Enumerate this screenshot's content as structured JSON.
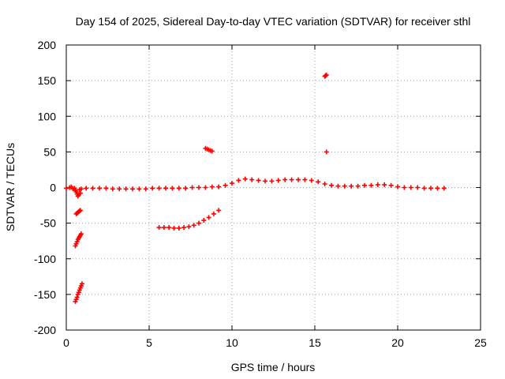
{
  "chart_data": {
    "type": "scatter",
    "title": "Day 154 of 2025, Sidereal Day-to-day VTEC variation (SDTVAR) for receiver sthl",
    "xlabel": "GPS time / hours",
    "ylabel": "SDTVAR / TECUs",
    "xlim": [
      0,
      25
    ],
    "ylim": [
      -200,
      200
    ],
    "xticks": [
      0,
      5,
      10,
      15,
      20,
      25
    ],
    "yticks": [
      -200,
      -150,
      -100,
      -50,
      0,
      50,
      100,
      150,
      200
    ],
    "grid": true,
    "marker": "plus",
    "color": "#ff0000",
    "series": [
      {
        "name": "SDTVAR",
        "points": [
          [
            0.0,
            -1
          ],
          [
            0.2,
            0
          ],
          [
            0.3,
            1
          ],
          [
            0.4,
            -2
          ],
          [
            0.5,
            -1
          ],
          [
            0.55,
            -4
          ],
          [
            0.6,
            -6
          ],
          [
            0.65,
            -9
          ],
          [
            0.7,
            -12
          ],
          [
            0.75,
            -10
          ],
          [
            0.8,
            -3
          ],
          [
            0.85,
            -8
          ],
          [
            0.9,
            -2
          ],
          [
            0.6,
            -37
          ],
          [
            0.65,
            -36
          ],
          [
            0.7,
            -35
          ],
          [
            0.75,
            -34
          ],
          [
            0.8,
            -33
          ],
          [
            0.85,
            -32
          ],
          [
            0.55,
            -82
          ],
          [
            0.6,
            -79
          ],
          [
            0.65,
            -76
          ],
          [
            0.7,
            -73
          ],
          [
            0.75,
            -71
          ],
          [
            0.8,
            -69
          ],
          [
            0.85,
            -67
          ],
          [
            0.9,
            -65
          ],
          [
            0.55,
            -160
          ],
          [
            0.6,
            -157
          ],
          [
            0.65,
            -154
          ],
          [
            0.7,
            -150
          ],
          [
            0.75,
            -147
          ],
          [
            0.8,
            -144
          ],
          [
            0.85,
            -141
          ],
          [
            0.9,
            -138
          ],
          [
            0.95,
            -135
          ],
          [
            1.2,
            -1
          ],
          [
            1.6,
            -1
          ],
          [
            2.0,
            -1
          ],
          [
            2.4,
            -1
          ],
          [
            2.8,
            -2
          ],
          [
            3.2,
            -2
          ],
          [
            3.6,
            -2
          ],
          [
            4.0,
            -2
          ],
          [
            4.4,
            -2
          ],
          [
            4.8,
            -2
          ],
          [
            5.2,
            -1
          ],
          [
            5.6,
            -1
          ],
          [
            6.0,
            -1
          ],
          [
            6.4,
            -1
          ],
          [
            6.8,
            -1
          ],
          [
            7.2,
            -1
          ],
          [
            7.6,
            0
          ],
          [
            8.0,
            0
          ],
          [
            8.4,
            0
          ],
          [
            8.8,
            1
          ],
          [
            9.2,
            1
          ],
          [
            9.6,
            3
          ],
          [
            10.0,
            6
          ],
          [
            10.4,
            10
          ],
          [
            10.8,
            12
          ],
          [
            11.2,
            11
          ],
          [
            11.6,
            10
          ],
          [
            12.0,
            9
          ],
          [
            12.4,
            9
          ],
          [
            12.8,
            10
          ],
          [
            13.2,
            11
          ],
          [
            13.6,
            11
          ],
          [
            14.0,
            11
          ],
          [
            14.4,
            11
          ],
          [
            14.8,
            10
          ],
          [
            15.2,
            8
          ],
          [
            15.6,
            5
          ],
          [
            16.0,
            3
          ],
          [
            16.4,
            2
          ],
          [
            16.8,
            2
          ],
          [
            17.2,
            2
          ],
          [
            17.6,
            2
          ],
          [
            18.0,
            3
          ],
          [
            18.4,
            3
          ],
          [
            18.8,
            4
          ],
          [
            19.2,
            4
          ],
          [
            19.6,
            3
          ],
          [
            20.0,
            1
          ],
          [
            20.4,
            0
          ],
          [
            20.8,
            0
          ],
          [
            21.2,
            0
          ],
          [
            21.6,
            -1
          ],
          [
            22.0,
            -1
          ],
          [
            22.4,
            -1
          ],
          [
            22.8,
            -1
          ],
          [
            5.6,
            -56
          ],
          [
            5.9,
            -56
          ],
          [
            6.2,
            -56
          ],
          [
            6.5,
            -57
          ],
          [
            6.8,
            -57
          ],
          [
            7.1,
            -56
          ],
          [
            7.4,
            -55
          ],
          [
            7.7,
            -53
          ],
          [
            8.0,
            -50
          ],
          [
            8.3,
            -46
          ],
          [
            8.6,
            -42
          ],
          [
            8.9,
            -37
          ],
          [
            9.2,
            -32
          ],
          [
            8.4,
            55
          ],
          [
            8.5,
            54
          ],
          [
            8.6,
            53
          ],
          [
            8.7,
            52
          ],
          [
            8.8,
            51
          ],
          [
            15.6,
            156
          ],
          [
            15.65,
            157
          ],
          [
            15.7,
            158
          ],
          [
            15.7,
            50
          ]
        ]
      }
    ]
  }
}
